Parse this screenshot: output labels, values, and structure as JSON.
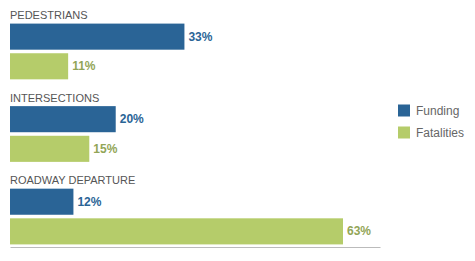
{
  "chart_data": {
    "type": "bar",
    "orientation": "horizontal",
    "categories": [
      "PEDESTRIANS",
      "INTERSECTIONS",
      "ROADWAY DEPARTURE"
    ],
    "series": [
      {
        "name": "Funding",
        "color": "#2A6496",
        "values": [
          33,
          20,
          12
        ],
        "value_labels": [
          "33%",
          "20%",
          "12%"
        ]
      },
      {
        "name": "Fatalities",
        "color": "#B5CC6A",
        "values": [
          11,
          15,
          63
        ],
        "value_labels": [
          "11%",
          "15%",
          "63%"
        ]
      }
    ],
    "xlim": [
      0,
      70
    ],
    "data_labels": true,
    "tick_labels": false,
    "grid": false,
    "legend": "right"
  }
}
